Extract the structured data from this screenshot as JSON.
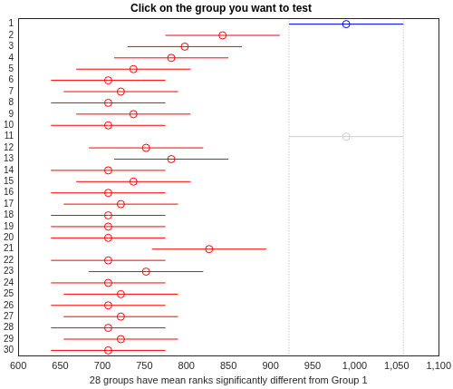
{
  "chart_data": {
    "type": "interval",
    "title": "Click on the group you want to test",
    "x_label": "28 groups have mean ranks significantly different from Group 1",
    "orientation": "horizontal",
    "y": [
      1,
      2,
      3,
      4,
      5,
      6,
      7,
      8,
      9,
      10,
      11,
      12,
      13,
      14,
      15,
      16,
      17,
      18,
      19,
      20,
      21,
      22,
      23,
      24,
      25,
      26,
      27,
      28,
      29,
      30
    ],
    "values": [
      990,
      843,
      798,
      782,
      737,
      707,
      722,
      707,
      737,
      707,
      990,
      752,
      782,
      707,
      737,
      707,
      722,
      707,
      707,
      707,
      827,
      707,
      752,
      707,
      722,
      707,
      722,
      707,
      722,
      707
    ],
    "error": [
      68,
      68,
      68,
      68,
      68,
      68,
      68,
      68,
      68,
      68,
      68,
      68,
      68,
      68,
      68,
      68,
      68,
      68,
      68,
      68,
      68,
      68,
      68,
      68,
      68,
      68,
      68,
      68,
      68,
      68
    ],
    "colors": [
      "#0000ff",
      "#ff0000",
      "#ff0000",
      "#ff0000",
      "#ff0000",
      "#ff0000",
      "#ff0000",
      "#ff0000",
      "#ff0000",
      "#ff0000",
      "#cccccc",
      "#ff0000",
      "#ff0000",
      "#ff0000",
      "#ff0000",
      "#ff0000",
      "#ff0000",
      "#ff0000",
      "#ff0000",
      "#ff0000",
      "#ff0000",
      "#ff0000",
      "#ff0000",
      "#ff0000",
      "#ff0000",
      "#ff0000",
      "#ff0000",
      "#ff0000",
      "#ff0000",
      "#ff0000"
    ],
    "reference_lines": [
      922,
      1058
    ],
    "marker": "circle",
    "xlim": [
      600,
      1100
    ],
    "xticks": [
      600,
      650,
      700,
      750,
      800,
      850,
      900,
      950,
      1000,
      1050,
      1100
    ],
    "ylim": [
      0.5,
      30.5
    ],
    "yticks": [
      1,
      2,
      3,
      4,
      5,
      6,
      7,
      8,
      9,
      10,
      11,
      12,
      13,
      14,
      15,
      16,
      17,
      18,
      19,
      20,
      21,
      22,
      23,
      24,
      25,
      26,
      27,
      28,
      29,
      30
    ],
    "grid": false
  }
}
